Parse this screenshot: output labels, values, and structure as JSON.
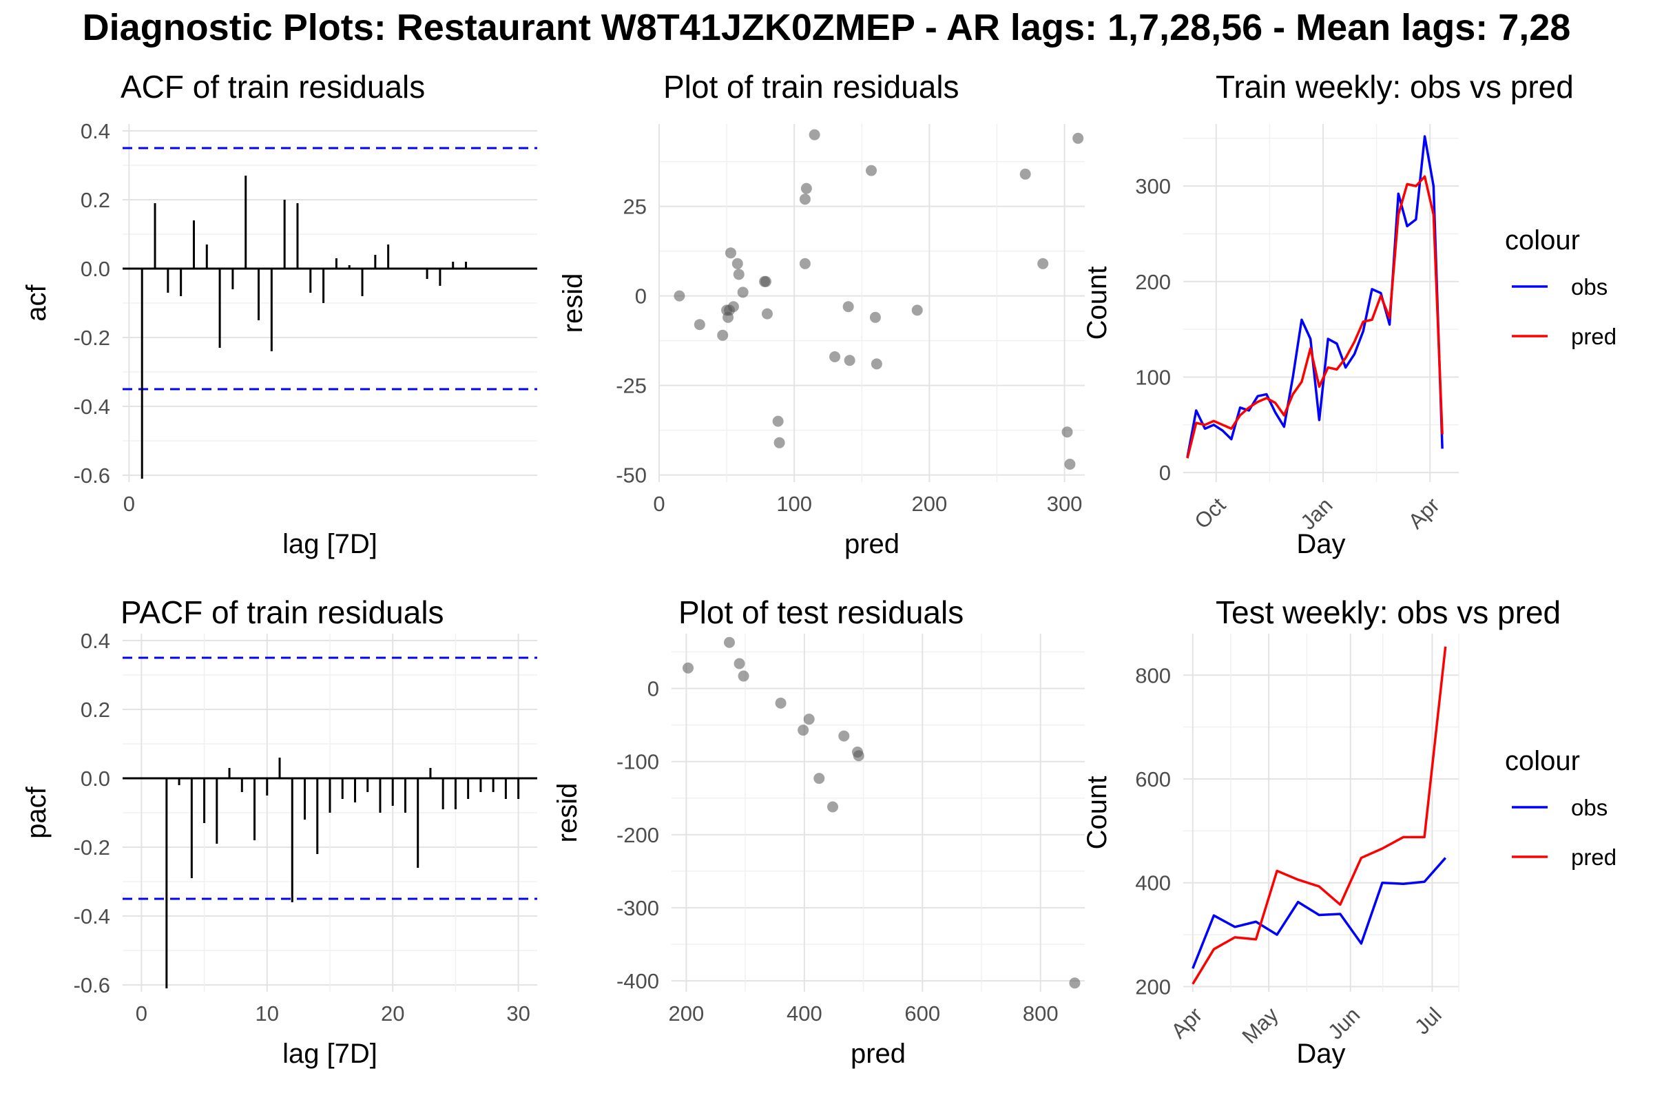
{
  "page_title": "Diagnostic Plots: Restaurant W8T41JZK0ZMEP - AR lags: 1,7,28,56 - Mean lags: 7,28",
  "legend_colors": {
    "obs": "#0000FF",
    "pred": "#FF0000"
  },
  "chart_data": [
    {
      "id": "acf",
      "type": "bar",
      "title": "ACF of train residuals",
      "xlabel": "lag [7D]",
      "ylabel": "acf",
      "xlim": [
        -0.5,
        31.5
      ],
      "ylim": [
        -0.62,
        0.42
      ],
      "xticks": [
        0
      ],
      "yticks": [
        -0.6,
        -0.4,
        -0.2,
        0.0,
        0.2,
        0.4
      ],
      "ci": 0.35,
      "x": [
        1,
        2,
        3,
        4,
        5,
        6,
        7,
        8,
        9,
        10,
        11,
        12,
        13,
        14,
        15,
        16,
        17,
        18,
        19,
        20,
        21,
        22,
        23,
        24,
        25,
        26,
        27,
        28,
        29,
        30
      ],
      "values": [
        -0.61,
        0.19,
        -0.07,
        -0.08,
        0.14,
        0.07,
        -0.23,
        -0.06,
        0.27,
        -0.15,
        -0.24,
        0.2,
        0.19,
        -0.07,
        -0.1,
        0.03,
        0.01,
        -0.08,
        0.04,
        0.07,
        0.0,
        0.0,
        -0.03,
        -0.05,
        0.02,
        0.02,
        0.0,
        0.0,
        0.0,
        0.0
      ]
    },
    {
      "id": "train-resid",
      "type": "scatter",
      "title": "Plot of train residuals",
      "xlabel": "pred",
      "ylabel": "resid",
      "xlim": [
        0,
        315
      ],
      "ylim": [
        -52,
        48
      ],
      "xticks": [
        0,
        100,
        200,
        300
      ],
      "yticks": [
        -50,
        -25,
        0,
        25
      ],
      "points": [
        [
          15,
          0
        ],
        [
          30,
          -8
        ],
        [
          47,
          -11
        ],
        [
          50,
          -4
        ],
        [
          51,
          -6
        ],
        [
          52,
          -4
        ],
        [
          53,
          12
        ],
        [
          55,
          -3
        ],
        [
          58,
          9
        ],
        [
          59,
          6
        ],
        [
          62,
          1
        ],
        [
          78,
          4
        ],
        [
          79,
          4
        ],
        [
          80,
          -5
        ],
        [
          88,
          -35
        ],
        [
          89,
          -41
        ],
        [
          108,
          27
        ],
        [
          109,
          30
        ],
        [
          108,
          9
        ],
        [
          115,
          45
        ],
        [
          130,
          -17
        ],
        [
          140,
          -3
        ],
        [
          141,
          -18
        ],
        [
          157,
          35
        ],
        [
          160,
          -6
        ],
        [
          161,
          -19
        ],
        [
          191,
          -4
        ],
        [
          271,
          34
        ],
        [
          284,
          9
        ],
        [
          302,
          -38
        ],
        [
          304,
          -47
        ],
        [
          310,
          44
        ]
      ]
    },
    {
      "id": "train-weekly",
      "type": "line",
      "title": "Train weekly: obs vs pred",
      "xlabel": "Day",
      "ylabel": "Count",
      "ylim": [
        -10,
        365
      ],
      "xlim": [
        0,
        33.5
      ],
      "xticks": [
        {
          "label": "Oct",
          "x": 4
        },
        {
          "label": "Jan",
          "x": 17
        },
        {
          "label": "Apr",
          "x": 30
        }
      ],
      "yticks": [
        0,
        100,
        200,
        300
      ],
      "legend_title": "colour",
      "legend_position": "right",
      "series": [
        {
          "name": "obs",
          "color": "#0000FF",
          "values": [
            16,
            65,
            46,
            50,
            44,
            35,
            68,
            65,
            80,
            82,
            63,
            48,
            100,
            160,
            140,
            55,
            140,
            135,
            110,
            124,
            148,
            192,
            188,
            155,
            292,
            258,
            265,
            352,
            300,
            25
          ]
        },
        {
          "name": "pred",
          "color": "#FF0000",
          "values": [
            15,
            52,
            50,
            54,
            50,
            46,
            60,
            68,
            74,
            78,
            73,
            60,
            82,
            95,
            130,
            90,
            110,
            108,
            120,
            137,
            158,
            160,
            185,
            162,
            270,
            302,
            300,
            310,
            270,
            40
          ]
        }
      ]
    },
    {
      "id": "pacf",
      "type": "bar",
      "title": "PACF of train residuals",
      "xlabel": "lag [7D]",
      "ylabel": "pacf",
      "xlim": [
        -1.5,
        31.5
      ],
      "ylim": [
        -0.62,
        0.42
      ],
      "xticks": [
        0,
        10,
        20,
        30
      ],
      "yticks": [
        -0.6,
        -0.4,
        -0.2,
        0.0,
        0.2,
        0.4
      ],
      "ci": 0.35,
      "x": [
        1,
        2,
        3,
        4,
        5,
        6,
        7,
        8,
        9,
        10,
        11,
        12,
        13,
        14,
        15,
        16,
        17,
        18,
        19,
        20,
        21,
        22,
        23,
        24,
        25,
        26,
        27,
        28,
        29,
        30
      ],
      "values": [
        0.0,
        -0.61,
        -0.02,
        -0.29,
        -0.13,
        -0.19,
        0.03,
        -0.04,
        -0.18,
        -0.05,
        0.06,
        -0.36,
        -0.12,
        -0.22,
        -0.1,
        -0.06,
        -0.07,
        -0.04,
        -0.1,
        -0.08,
        -0.1,
        -0.26,
        0.03,
        -0.09,
        -0.09,
        -0.06,
        -0.04,
        -0.04,
        -0.06,
        -0.06
      ]
    },
    {
      "id": "test-resid",
      "type": "scatter",
      "title": "Plot of test residuals",
      "xlabel": "pred",
      "ylabel": "resid",
      "xlim": [
        175,
        875
      ],
      "ylim": [
        -415,
        75
      ],
      "xticks": [
        200,
        400,
        600,
        800
      ],
      "yticks": [
        -400,
        -300,
        -200,
        -100,
        0
      ],
      "points": [
        [
          203,
          28
        ],
        [
          273,
          63
        ],
        [
          290,
          34
        ],
        [
          297,
          17
        ],
        [
          360,
          -20
        ],
        [
          398,
          -57
        ],
        [
          408,
          -42
        ],
        [
          425,
          -123
        ],
        [
          448,
          -162
        ],
        [
          467,
          -65
        ],
        [
          490,
          -87
        ],
        [
          492,
          -92
        ],
        [
          858,
          -403
        ]
      ]
    },
    {
      "id": "test-weekly",
      "type": "line",
      "title": "Test weekly: obs vs pred",
      "xlabel": "Day",
      "ylabel": "Count",
      "ylim": [
        190,
        880
      ],
      "xlim": [
        -0.5,
        14.0
      ],
      "xticks": [
        {
          "label": "Apr",
          "x": 0
        },
        {
          "label": "May",
          "x": 4
        },
        {
          "label": "Jun",
          "x": 8.3
        },
        {
          "label": "Jul",
          "x": 12.6
        }
      ],
      "yticks": [
        200,
        400,
        600,
        800
      ],
      "legend_title": "colour",
      "legend_position": "right",
      "series": [
        {
          "name": "obs",
          "color": "#0000FF",
          "values": [
            235,
            337,
            315,
            325,
            300,
            363,
            338,
            340,
            283,
            400,
            398,
            402,
            448
          ]
        },
        {
          "name": "pred",
          "color": "#FF0000",
          "values": [
            205,
            272,
            295,
            291,
            423,
            406,
            393,
            358,
            448,
            466,
            488,
            488,
            855
          ]
        }
      ]
    }
  ]
}
